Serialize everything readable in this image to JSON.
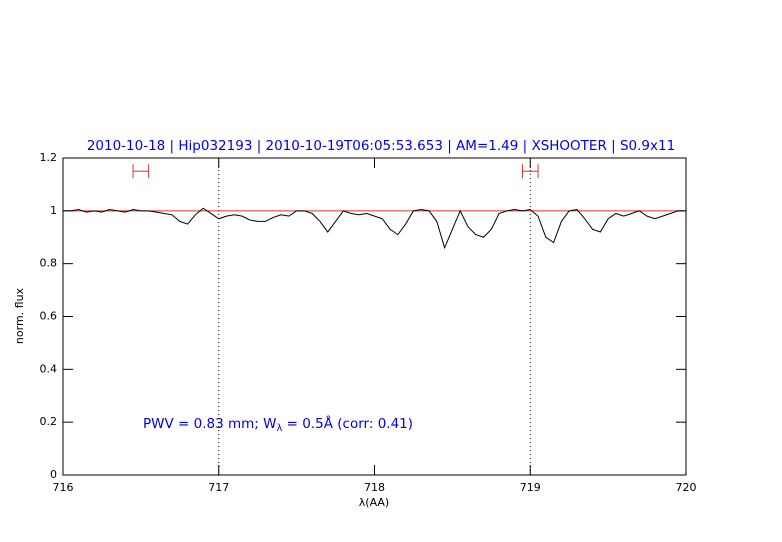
{
  "chart_data": {
    "type": "line",
    "title": "2010-10-18 | Hip032193 | 2010-10-19T06:05:53.653 | AM=1.49 | XSHOOTER | S0.9x11",
    "x_label": "λ(AA)",
    "y_label": "norm. flux",
    "annotation": [
      "PWV = 0.83 mm; W",
      "λ",
      " = 0.5Å (corr: 0.41)"
    ],
    "xlim": [
      716,
      720
    ],
    "xticks": [
      716,
      717,
      718,
      719,
      720
    ],
    "ylim": [
      0,
      1.2
    ],
    "yticks": [
      0,
      0.2,
      0.4,
      0.6,
      0.8,
      1,
      1.2
    ],
    "vlines": [
      717,
      719
    ],
    "vline_color": "#000000",
    "ranges": {
      "color": "#e03030",
      "y": 1.15,
      "spans": [
        [
          716.45,
          716.55
        ],
        [
          718.95,
          719.05
        ]
      ]
    },
    "series": [
      {
        "color": "#e03030",
        "x": [
          716,
          720
        ],
        "values": [
          1,
          1
        ]
      },
      {
        "color": "#000000",
        "x": [
          716.0,
          716.05,
          716.1,
          716.15,
          716.2,
          716.25,
          716.3,
          716.35,
          716.4,
          716.45,
          716.5,
          716.55,
          716.6,
          716.65,
          716.7,
          716.75,
          716.8,
          716.85,
          716.9,
          716.95,
          717.0,
          717.05,
          717.1,
          717.15,
          717.2,
          717.25,
          717.3,
          717.35,
          717.4,
          717.45,
          717.5,
          717.55,
          717.6,
          717.65,
          717.7,
          717.75,
          717.8,
          717.85,
          717.9,
          717.95,
          718.0,
          718.05,
          718.1,
          718.15,
          718.2,
          718.25,
          718.3,
          718.35,
          718.4,
          718.45,
          718.5,
          718.55,
          718.6,
          718.65,
          718.7,
          718.75,
          718.8,
          718.85,
          718.9,
          718.95,
          719.0,
          719.05,
          719.1,
          719.15,
          719.2,
          719.25,
          719.3,
          719.35,
          719.4,
          719.45,
          719.5,
          719.55,
          719.6,
          719.65,
          719.7,
          719.75,
          719.8,
          719.85,
          719.9,
          719.95,
          720.0
        ],
        "values": [
          1.0,
          1.0,
          1.005,
          0.995,
          1.0,
          0.995,
          1.005,
          1.0,
          0.995,
          1.005,
          1.0,
          1.0,
          0.995,
          0.99,
          0.985,
          0.96,
          0.95,
          0.985,
          1.01,
          0.99,
          0.97,
          0.98,
          0.985,
          0.98,
          0.965,
          0.96,
          0.96,
          0.975,
          0.985,
          0.98,
          1.0,
          1.0,
          0.99,
          0.96,
          0.92,
          0.96,
          1.0,
          0.99,
          0.985,
          0.99,
          0.98,
          0.97,
          0.93,
          0.91,
          0.95,
          1.0,
          1.005,
          1.0,
          0.96,
          0.86,
          0.93,
          1.0,
          0.94,
          0.91,
          0.9,
          0.93,
          0.99,
          1.0,
          1.005,
          1.0,
          1.005,
          0.98,
          0.9,
          0.88,
          0.96,
          1.0,
          1.005,
          0.97,
          0.93,
          0.92,
          0.97,
          0.99,
          0.98,
          0.99,
          1.0,
          0.98,
          0.97,
          0.98,
          0.99,
          1.0,
          1.0
        ]
      }
    ],
    "text_color": "#0000ee"
  }
}
